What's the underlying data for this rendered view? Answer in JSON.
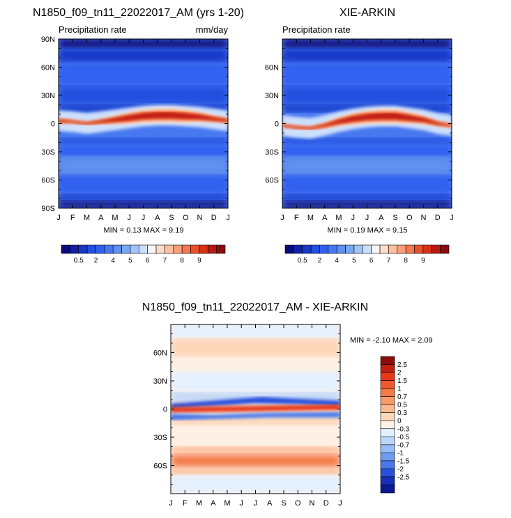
{
  "chart_data": [
    {
      "type": "heatmap",
      "id": "model",
      "title": "N1850_f09_tn11_22022017_AM (yrs 1-20)",
      "subtitle_left": "Precipitation rate",
      "subtitle_right": "mm/day",
      "x_ticks": [
        "J",
        "F",
        "M",
        "A",
        "M",
        "J",
        "J",
        "A",
        "S",
        "O",
        "N",
        "D",
        "J"
      ],
      "y_ticks": [
        {
          "value": 90,
          "label": "90N"
        },
        {
          "value": 60,
          "label": "60N"
        },
        {
          "value": 30,
          "label": "30N"
        },
        {
          "value": 0,
          "label": "0"
        },
        {
          "value": -30,
          "label": "30S"
        },
        {
          "value": -60,
          "label": "60S"
        },
        {
          "value": -90,
          "label": "90S"
        }
      ],
      "ylim": [
        -90,
        90
      ],
      "min_label": "MIN =",
      "min_value": "0.13",
      "max_label": "MAX =",
      "max_value": "9.19",
      "stats_text": "MIN =  0.13 MAX =  9.19",
      "itcz_lat": [
        3,
        2,
        0,
        2,
        4,
        6,
        8,
        9,
        9,
        8,
        7,
        5,
        3
      ],
      "itcz_peak": [
        6.0,
        5.5,
        5.5,
        6.0,
        7.0,
        8.0,
        8.5,
        9.0,
        9.0,
        8.5,
        7.5,
        6.5,
        6.0
      ]
    },
    {
      "type": "heatmap",
      "id": "obs",
      "title": "XIE-ARKIN",
      "subtitle_left": "Precipitation rate",
      "x_ticks": [
        "J",
        "F",
        "M",
        "A",
        "M",
        "J",
        "J",
        "A",
        "S",
        "O",
        "N",
        "D",
        "J"
      ],
      "y_ticks": [
        {
          "value": 60,
          "label": "60N"
        },
        {
          "value": 30,
          "label": "30N"
        },
        {
          "value": 0,
          "label": "0"
        },
        {
          "value": -30,
          "label": "30S"
        },
        {
          "value": -60,
          "label": "60S"
        }
      ],
      "ylim": [
        -90,
        90
      ],
      "min_label": "MIN =",
      "min_value": "0.19",
      "max_label": "MAX =",
      "max_value": "9.15",
      "stats_text": "MIN =  0.19 MAX =  9.15",
      "itcz_lat": [
        -2,
        -4,
        -5,
        -2,
        2,
        5,
        7,
        8,
        8,
        6,
        4,
        0,
        -2
      ],
      "itcz_peak": [
        5.5,
        5.5,
        5.5,
        6.0,
        7.0,
        8.0,
        8.5,
        9.0,
        9.0,
        8.0,
        7.0,
        6.0,
        5.5
      ]
    },
    {
      "type": "heatmap",
      "id": "diff",
      "title": "N1850_f09_tn11_22022017_AM - XIE-ARKIN",
      "x_ticks": [
        "J",
        "F",
        "M",
        "A",
        "M",
        "J",
        "J",
        "A",
        "S",
        "O",
        "N",
        "D",
        "J"
      ],
      "y_ticks": [
        {
          "value": 60,
          "label": "60N"
        },
        {
          "value": 30,
          "label": "30N"
        },
        {
          "value": 0,
          "label": "0"
        },
        {
          "value": -30,
          "label": "30S"
        },
        {
          "value": -60,
          "label": "60S"
        }
      ],
      "ylim": [
        -90,
        90
      ],
      "min_label": "MIN =",
      "min_value": "-2.10",
      "max_label": "MAX =",
      "max_value": "2.09",
      "stats_text": "MIN =  -2.10 MAX =   2.09"
    }
  ],
  "colorbars": {
    "precip": {
      "labels": [
        "0.5",
        "2",
        "4",
        "5",
        "6",
        "7",
        "8",
        "9"
      ],
      "colors": [
        "#0a0a7a",
        "#1020a8",
        "#1838c8",
        "#2050e0",
        "#3060f0",
        "#4878f0",
        "#6090f0",
        "#7aa8f4",
        "#a0c4f8",
        "#cce0fc",
        "#f6f6f6",
        "#fcdcc8",
        "#fcc0a0",
        "#f8a078",
        "#f47850",
        "#ec5028",
        "#d83018",
        "#b81810",
        "#8c0c0c"
      ]
    },
    "diff": {
      "labels": [
        "2.5",
        "2",
        "1.5",
        "1",
        "0.7",
        "0.5",
        "0.3",
        "0",
        "-0.3",
        "-0.5",
        "-0.7",
        "-1",
        "-1.5",
        "-2",
        "-2.5"
      ],
      "colors": [
        "#8c0c0c",
        "#c01e10",
        "#e83818",
        "#f05a2c",
        "#f47a48",
        "#f89a6a",
        "#fab890",
        "#fcd6b8",
        "#fef0e4",
        "#e4f0fe",
        "#bcd6fa",
        "#96bcf6",
        "#6e9cf0",
        "#4878ea",
        "#2850dc",
        "#1830b8",
        "#0c1890"
      ]
    }
  }
}
